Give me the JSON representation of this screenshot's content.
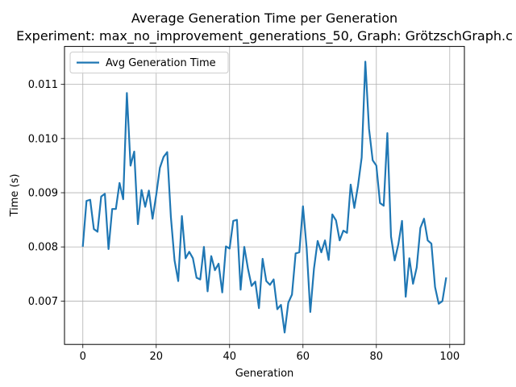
{
  "chart_data": {
    "type": "line",
    "title": "Average Generation Time per Generation",
    "subtitle": "Experiment: max_no_improvement_generations_50, Graph: GrötzschGraph.c",
    "xlabel": "Generation",
    "ylabel": "Time (s)",
    "xlim": [
      -5,
      104
    ],
    "ylim": [
      0.0062,
      0.0117
    ],
    "xticks": [
      0,
      20,
      40,
      60,
      80,
      100
    ],
    "xtick_labels": [
      "0",
      "20",
      "40",
      "60",
      "80",
      "100"
    ],
    "yticks": [
      0.007,
      0.008,
      0.009,
      0.01,
      0.011
    ],
    "ytick_labels": [
      "0.007",
      "0.008",
      "0.009",
      "0.010",
      "0.011"
    ],
    "grid": true,
    "legend_position": "top-left",
    "series": [
      {
        "name": "Avg Generation Time",
        "color": "#1f77b4",
        "x": [
          0,
          1,
          2,
          3,
          4,
          5,
          6,
          7,
          8,
          9,
          10,
          11,
          12,
          13,
          14,
          15,
          16,
          17,
          18,
          19,
          20,
          21,
          22,
          23,
          24,
          25,
          26,
          27,
          28,
          29,
          30,
          31,
          32,
          33,
          34,
          35,
          36,
          37,
          38,
          39,
          40,
          41,
          42,
          43,
          44,
          45,
          46,
          47,
          48,
          49,
          50,
          51,
          52,
          53,
          54,
          55,
          56,
          57,
          58,
          59,
          60,
          61,
          62,
          63,
          64,
          65,
          66,
          67,
          68,
          69,
          70,
          71,
          72,
          73,
          74,
          75,
          76,
          77,
          78,
          79,
          80,
          81,
          82,
          83,
          84,
          85,
          86,
          87,
          88,
          89,
          90,
          91,
          92,
          93,
          94,
          95,
          96,
          97,
          98,
          99
        ],
        "values": [
          0.00802,
          0.00885,
          0.00887,
          0.00833,
          0.00828,
          0.00893,
          0.00898,
          0.00796,
          0.0087,
          0.0087,
          0.00918,
          0.00888,
          0.01084,
          0.0095,
          0.00976,
          0.00842,
          0.00905,
          0.00874,
          0.00904,
          0.00852,
          0.00896,
          0.00946,
          0.00966,
          0.00975,
          0.00855,
          0.00775,
          0.00737,
          0.00857,
          0.00779,
          0.00791,
          0.00779,
          0.00743,
          0.0074,
          0.008,
          0.00718,
          0.00783,
          0.00757,
          0.00769,
          0.00716,
          0.00801,
          0.00797,
          0.00848,
          0.0085,
          0.00721,
          0.008,
          0.0076,
          0.00728,
          0.00736,
          0.00687,
          0.00778,
          0.00737,
          0.0073,
          0.0074,
          0.00685,
          0.00693,
          0.00642,
          0.00697,
          0.00712,
          0.00788,
          0.0079,
          0.00875,
          0.00798,
          0.0068,
          0.0076,
          0.00811,
          0.0079,
          0.00812,
          0.00776,
          0.0086,
          0.00849,
          0.00812,
          0.0083,
          0.00826,
          0.00915,
          0.00872,
          0.00913,
          0.00965,
          0.01142,
          0.01018,
          0.0096,
          0.0095,
          0.00881,
          0.00876,
          0.0101,
          0.00819,
          0.00775,
          0.00805,
          0.00848,
          0.00708,
          0.00779,
          0.00732,
          0.00762,
          0.00835,
          0.00852,
          0.00812,
          0.00806,
          0.00726,
          0.00695,
          0.007,
          0.00742
        ]
      }
    ]
  }
}
